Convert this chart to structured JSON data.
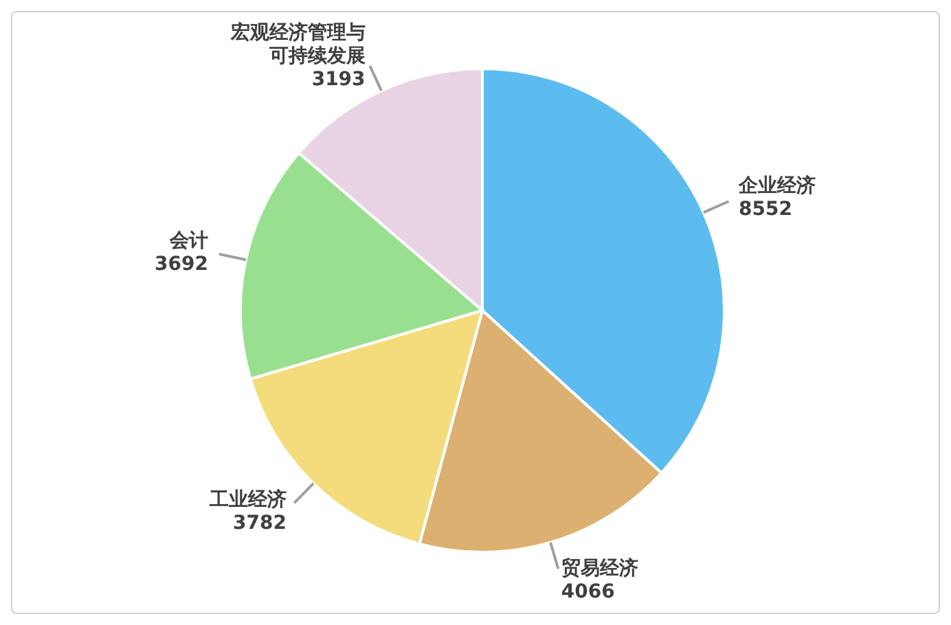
{
  "chart_data": {
    "type": "pie",
    "categories": [
      "企业经济",
      "贸易经济",
      "工业经济",
      "会计",
      "宏观经济管理与可持续发展"
    ],
    "values": [
      8552,
      4066,
      3782,
      3692,
      3193
    ],
    "colors": [
      "#5cbcf0",
      "#dcb070",
      "#f4dc7c",
      "#98e090",
      "#e8d4e4"
    ],
    "data_labels": true
  }
}
